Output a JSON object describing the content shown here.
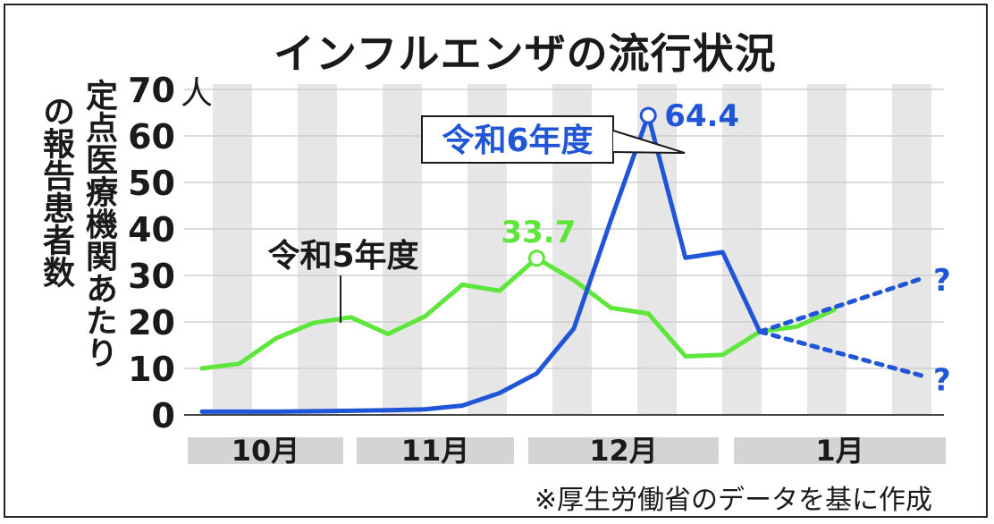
{
  "title": "インフルエンザの流行状況",
  "ylabel_line1": "定点医療機関あたり",
  "ylabel_line2": "の報告患者数",
  "unit": "人",
  "source": "※厚生労働省のデータを基に作成",
  "colors": {
    "green": "#5ee63c",
    "blue": "#1f55d6",
    "stripe": "#e6e6e6",
    "month_bar": "#d4d4d4",
    "text": "#1a1a1a"
  },
  "chart_data": {
    "type": "line",
    "title": "インフルエンザの流行状況",
    "ylabel": "定点医療機関あたりの報告患者数",
    "unit": "人",
    "ylim": [
      0,
      70
    ],
    "yticks": [
      "0",
      "10",
      "20",
      "30",
      "40",
      "50",
      "60",
      "70"
    ],
    "ytick_values": [
      0,
      10,
      20,
      30,
      40,
      50,
      60,
      70
    ],
    "grid": true,
    "month_labels": [
      "10月",
      "11月",
      "12月",
      "1月"
    ],
    "series": [
      {
        "name": "令和5年度",
        "color": "#5ee63c",
        "values": [
          10.0,
          11.0,
          16.5,
          19.8,
          21.0,
          17.4,
          21.2,
          28.0,
          26.7,
          33.7,
          29.0,
          23.0,
          21.8,
          12.6,
          12.9,
          17.9,
          19.0,
          22.6
        ],
        "peak_label": "33.7"
      },
      {
        "name": "令和6年度",
        "color": "#1f55d6",
        "values": [
          0.7,
          0.7,
          0.7,
          0.8,
          0.9,
          1.0,
          1.2,
          2.0,
          4.7,
          8.9,
          18.6,
          42.0,
          64.4,
          33.8,
          35.0,
          17.9
        ],
        "peak_label": "64.4",
        "projection_labels": [
          "?",
          "?"
        ]
      }
    ]
  }
}
